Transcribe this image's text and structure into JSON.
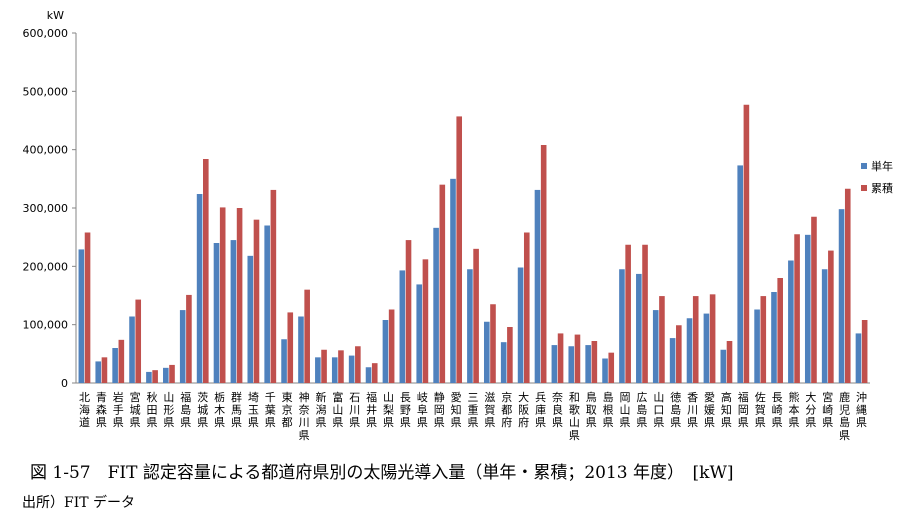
{
  "chart_data": {
    "type": "bar",
    "title": "",
    "ylabel": "kW",
    "ylim": [
      0,
      600000
    ],
    "yticks": [
      "0",
      "100,000",
      "200,000",
      "300,000",
      "400,000",
      "500,000",
      "600,000"
    ],
    "grid": false,
    "legend_position": "right",
    "categories": [
      "北海道",
      "青森県",
      "岩手県",
      "宮城県",
      "秋田県",
      "山形県",
      "福島県",
      "茨城県",
      "栃木県",
      "群馬県",
      "埼玉県",
      "千葉県",
      "東京都",
      "神奈川県",
      "新潟県",
      "富山県",
      "石川県",
      "福井県",
      "山梨県",
      "長野県",
      "岐阜県",
      "静岡県",
      "愛知県",
      "三重県",
      "滋賀県",
      "京都府",
      "大阪府",
      "兵庫県",
      "奈良県",
      "和歌山県",
      "鳥取県",
      "島根県",
      "岡山県",
      "広島県",
      "山口県",
      "徳島県",
      "香川県",
      "愛媛県",
      "高知県",
      "福岡県",
      "佐賀県",
      "長崎県",
      "熊本県",
      "大分県",
      "宮崎県",
      "鹿児島県",
      "沖縄県"
    ],
    "series": [
      {
        "name": "単年",
        "color": "#4f81bd",
        "values": [
          229000,
          37000,
          60000,
          114000,
          19000,
          26000,
          125000,
          324000,
          240000,
          245000,
          218000,
          270000,
          75000,
          114000,
          44000,
          44000,
          47000,
          27000,
          108000,
          193000,
          169000,
          266000,
          350000,
          195000,
          105000,
          70000,
          198000,
          331000,
          65000,
          63000,
          65000,
          42000,
          195000,
          187000,
          125000,
          77000,
          111000,
          119000,
          57000,
          373000,
          126000,
          156000,
          210000,
          254000,
          195000,
          298000,
          85000
        ]
      },
      {
        "name": "累積",
        "color": "#c0504d",
        "values": [
          258000,
          44000,
          74000,
          143000,
          22000,
          31000,
          151000,
          384000,
          301000,
          300000,
          280000,
          331000,
          121000,
          160000,
          57000,
          56000,
          63000,
          34000,
          126000,
          245000,
          212000,
          340000,
          457000,
          230000,
          135000,
          96000,
          258000,
          408000,
          85000,
          83000,
          72000,
          52000,
          237000,
          237000,
          149000,
          99000,
          149000,
          152000,
          72000,
          477000,
          149000,
          180000,
          255000,
          285000,
          227000,
          333000,
          108000
        ]
      }
    ]
  },
  "caption": "図 1-57　FIT 認定容量による都道府県別の太陽光導入量（単年・累積；2013 年度）　[kW]",
  "source": "出所）FIT データ"
}
